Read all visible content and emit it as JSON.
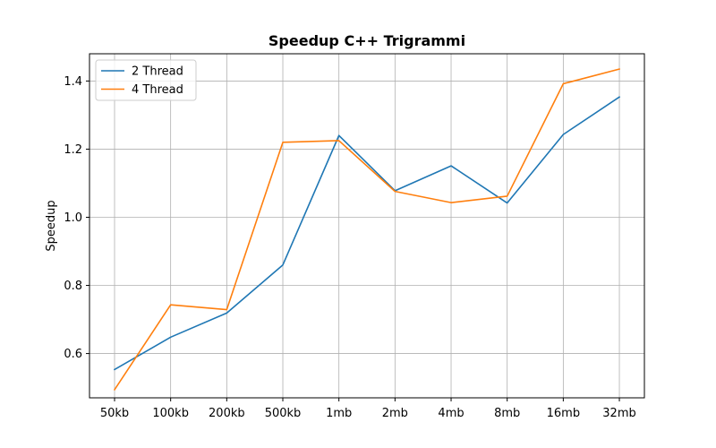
{
  "chart_data": {
    "type": "line",
    "title": "Speedup C++ Trigrammi",
    "xlabel": "",
    "ylabel": "Speedup",
    "categories": [
      "50kb",
      "100kb",
      "200kb",
      "500kb",
      "1mb",
      "2mb",
      "4mb",
      "8mb",
      "16mb",
      "32mb"
    ],
    "series": [
      {
        "name": "2 Thread",
        "color": "#1f77b4",
        "values": [
          0.553,
          0.648,
          0.719,
          0.86,
          1.24,
          1.078,
          1.151,
          1.042,
          1.243,
          1.353
        ]
      },
      {
        "name": "4 Thread",
        "color": "#ff7f0e",
        "values": [
          0.494,
          0.743,
          0.729,
          1.22,
          1.225,
          1.076,
          1.043,
          1.062,
          1.392,
          1.435
        ]
      }
    ],
    "ylim": [
      0.47,
      1.48
    ],
    "yticks": [
      "0.6",
      "0.8",
      "1.0",
      "1.2",
      "1.4"
    ],
    "grid": true,
    "legend_position": "top-left"
  }
}
